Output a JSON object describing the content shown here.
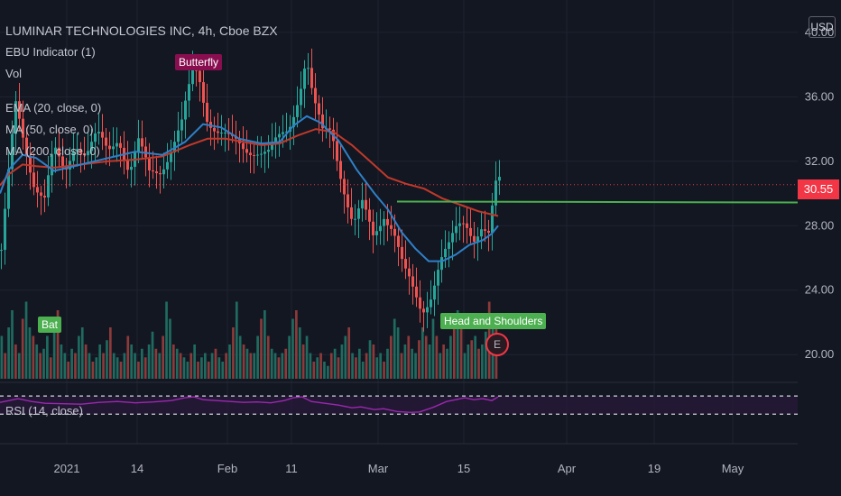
{
  "symbol": {
    "title": "LUMINAR TECHNOLOGIES INC, 4h, Cboe BZX",
    "currency": "USD"
  },
  "indicators": {
    "ebu": "EBU Indicator (1)",
    "vol": "Vol",
    "ema20": "EMA (20, close, 0)",
    "ma50": "MA (50, close, 0)",
    "ma200": "MA (200, close, 0)",
    "rsi": "RSI (14, close)"
  },
  "patterns": {
    "butterfly": "Butterfly",
    "bat": "Bat",
    "head_shoulders": "Head and Shoulders"
  },
  "earnings_marker": "E",
  "last_price": "30.55",
  "colors": {
    "background": "#131722",
    "up": "#26a69a",
    "down": "#ef5350",
    "ema": "#2f80c8",
    "ma": "#c0392b",
    "rsi": "#9c27b0",
    "neckline": "#4caf50"
  },
  "chart_data": {
    "type": "candlestick",
    "y_ticks": [
      "40.00",
      "36.00",
      "32.00",
      "28.00",
      "24.00",
      "20.00"
    ],
    "x_ticks": [
      "2021",
      "14",
      "Feb",
      "11",
      "Mar",
      "15",
      "Apr",
      "19",
      "May"
    ],
    "price_range": [
      18.5,
      41
    ],
    "neckline_price": 29.5,
    "last_price": 30.55,
    "rsi_bounds": [
      30,
      70
    ],
    "close_points": [
      [
        0,
        26.5
      ],
      [
        8,
        31
      ],
      [
        16,
        35.2
      ],
      [
        26,
        33
      ],
      [
        36,
        31
      ],
      [
        48,
        29.8
      ],
      [
        58,
        32.5
      ],
      [
        70,
        31
      ],
      [
        82,
        33.5
      ],
      [
        94,
        32.6
      ],
      [
        106,
        33.4
      ],
      [
        118,
        32.4
      ],
      [
        130,
        33.8
      ],
      [
        142,
        31.5
      ],
      [
        152,
        33
      ],
      [
        164,
        31
      ],
      [
        176,
        31.6
      ],
      [
        188,
        33
      ],
      [
        200,
        34.2
      ],
      [
        212,
        37.2
      ],
      [
        218,
        37.5
      ],
      [
        228,
        35
      ],
      [
        240,
        34
      ],
      [
        254,
        33
      ],
      [
        268,
        32.8
      ],
      [
        282,
        33
      ],
      [
        296,
        32.4
      ],
      [
        306,
        33
      ],
      [
        318,
        34
      ],
      [
        330,
        36.5
      ],
      [
        338,
        38.6
      ],
      [
        346,
        35.5
      ],
      [
        356,
        33.5
      ],
      [
        366,
        34
      ],
      [
        378,
        31
      ],
      [
        390,
        28
      ],
      [
        400,
        29
      ],
      [
        412,
        27.3
      ],
      [
        424,
        29
      ],
      [
        434,
        28
      ],
      [
        446,
        25
      ],
      [
        456,
        23.8
      ],
      [
        466,
        22.8
      ],
      [
        476,
        24
      ],
      [
        486,
        25.8
      ],
      [
        496,
        26.4
      ],
      [
        506,
        27.8
      ],
      [
        514,
        28.4
      ],
      [
        524,
        27.6
      ],
      [
        532,
        28
      ],
      [
        540,
        27.2
      ],
      [
        548,
        30.2
      ],
      [
        552,
        30.55
      ]
    ],
    "ema_points": [
      [
        0,
        30
      ],
      [
        10,
        31.5
      ],
      [
        25,
        32.4
      ],
      [
        40,
        32.2
      ],
      [
        60,
        31.4
      ],
      [
        90,
        31.8
      ],
      [
        120,
        32.2
      ],
      [
        150,
        32.6
      ],
      [
        180,
        32.4
      ],
      [
        205,
        33.2
      ],
      [
        225,
        34.3
      ],
      [
        245,
        34.1
      ],
      [
        265,
        33.4
      ],
      [
        290,
        33.1
      ],
      [
        310,
        33.2
      ],
      [
        325,
        34.2
      ],
      [
        340,
        34.8
      ],
      [
        355,
        34.4
      ],
      [
        375,
        33.3
      ],
      [
        395,
        31.5
      ],
      [
        415,
        30.0
      ],
      [
        430,
        29.0
      ],
      [
        445,
        27.6
      ],
      [
        460,
        26.6
      ],
      [
        475,
        25.8
      ],
      [
        490,
        25.8
      ],
      [
        505,
        26.2
      ],
      [
        520,
        26.8
      ],
      [
        535,
        27.1
      ],
      [
        545,
        27.5
      ],
      [
        552,
        28
      ]
    ],
    "ma_points": [
      [
        0,
        30.5
      ],
      [
        10,
        31.2
      ],
      [
        25,
        31.8
      ],
      [
        40,
        31.7
      ],
      [
        60,
        31.6
      ],
      [
        90,
        31.8
      ],
      [
        120,
        32.0
      ],
      [
        150,
        32.1
      ],
      [
        180,
        32.3
      ],
      [
        210,
        33
      ],
      [
        230,
        33.4
      ],
      [
        250,
        33.4
      ],
      [
        270,
        33.2
      ],
      [
        290,
        33.0
      ],
      [
        310,
        33.1
      ],
      [
        330,
        33.6
      ],
      [
        350,
        34.0
      ],
      [
        370,
        33.8
      ],
      [
        390,
        33.0
      ],
      [
        410,
        32.0
      ],
      [
        430,
        31.0
      ],
      [
        450,
        30.6
      ],
      [
        470,
        30.3
      ],
      [
        490,
        29.7
      ],
      [
        510,
        29.3
      ],
      [
        530,
        28.9
      ],
      [
        552,
        28.6
      ]
    ],
    "volume": [
      0.5,
      0.3,
      0.6,
      0.8,
      0.4,
      0.3,
      0.7,
      0.9,
      0.6,
      0.5,
      0.4,
      0.3,
      0.35,
      0.5,
      0.25,
      0.6,
      0.8,
      0.4,
      0.3,
      0.2,
      0.35,
      0.3,
      0.5,
      0.6,
      0.4,
      0.3,
      0.2,
      0.25,
      0.4,
      0.3,
      0.45,
      0.6,
      0.3,
      0.25,
      0.2,
      0.3,
      0.5,
      0.4,
      0.3,
      0.2,
      0.35,
      0.25,
      0.4,
      0.55,
      0.35,
      0.3,
      0.5,
      0.9,
      0.7,
      0.4,
      0.35,
      0.3,
      0.25,
      0.2,
      0.3,
      0.4,
      0.2,
      0.25,
      0.3,
      0.2,
      0.3,
      0.35,
      0.25,
      0.2,
      0.3,
      0.4,
      0.6,
      0.9,
      0.5,
      0.4,
      0.35,
      0.3,
      0.3,
      0.5,
      0.7,
      0.8,
      0.5,
      0.35,
      0.3,
      0.25,
      0.3,
      0.35,
      0.5,
      0.7,
      0.8,
      0.6,
      0.4,
      0.5,
      0.3,
      0.2,
      0.25,
      0.3,
      0.2,
      0.15,
      0.3,
      0.35,
      0.25,
      0.4,
      0.5,
      0.6,
      0.3,
      0.25,
      0.35,
      0.2,
      0.3,
      0.45,
      0.4,
      0.25,
      0.3,
      0.2,
      0.35,
      0.5,
      0.7,
      0.6,
      0.3,
      0.4,
      0.5,
      0.35,
      0.3,
      0.45,
      0.6,
      0.5,
      0.4,
      0.7,
      0.5,
      0.3,
      0.4,
      0.35,
      0.5,
      0.6,
      0.8,
      0.7,
      0.3,
      0.4,
      0.45,
      0.5,
      0.35,
      0.4,
      0.55,
      0.9,
      0.7,
      0.6
    ],
    "rsi_points": [
      [
        0,
        56
      ],
      [
        10,
        60
      ],
      [
        20,
        64
      ],
      [
        35,
        58
      ],
      [
        50,
        54
      ],
      [
        70,
        53
      ],
      [
        90,
        52
      ],
      [
        110,
        56
      ],
      [
        130,
        58
      ],
      [
        150,
        55
      ],
      [
        170,
        57
      ],
      [
        190,
        60
      ],
      [
        205,
        66
      ],
      [
        215,
        68
      ],
      [
        225,
        62
      ],
      [
        240,
        60
      ],
      [
        255,
        58
      ],
      [
        270,
        56
      ],
      [
        285,
        57
      ],
      [
        300,
        55
      ],
      [
        315,
        60
      ],
      [
        325,
        66
      ],
      [
        335,
        68
      ],
      [
        345,
        58
      ],
      [
        360,
        54
      ],
      [
        375,
        50
      ],
      [
        390,
        44
      ],
      [
        400,
        46
      ],
      [
        415,
        40
      ],
      [
        425,
        42
      ],
      [
        440,
        36
      ],
      [
        455,
        34
      ],
      [
        465,
        35
      ],
      [
        480,
        45
      ],
      [
        495,
        58
      ],
      [
        505,
        62
      ],
      [
        515,
        66
      ],
      [
        525,
        62
      ],
      [
        535,
        64
      ],
      [
        545,
        60
      ],
      [
        552,
        68
      ]
    ]
  }
}
